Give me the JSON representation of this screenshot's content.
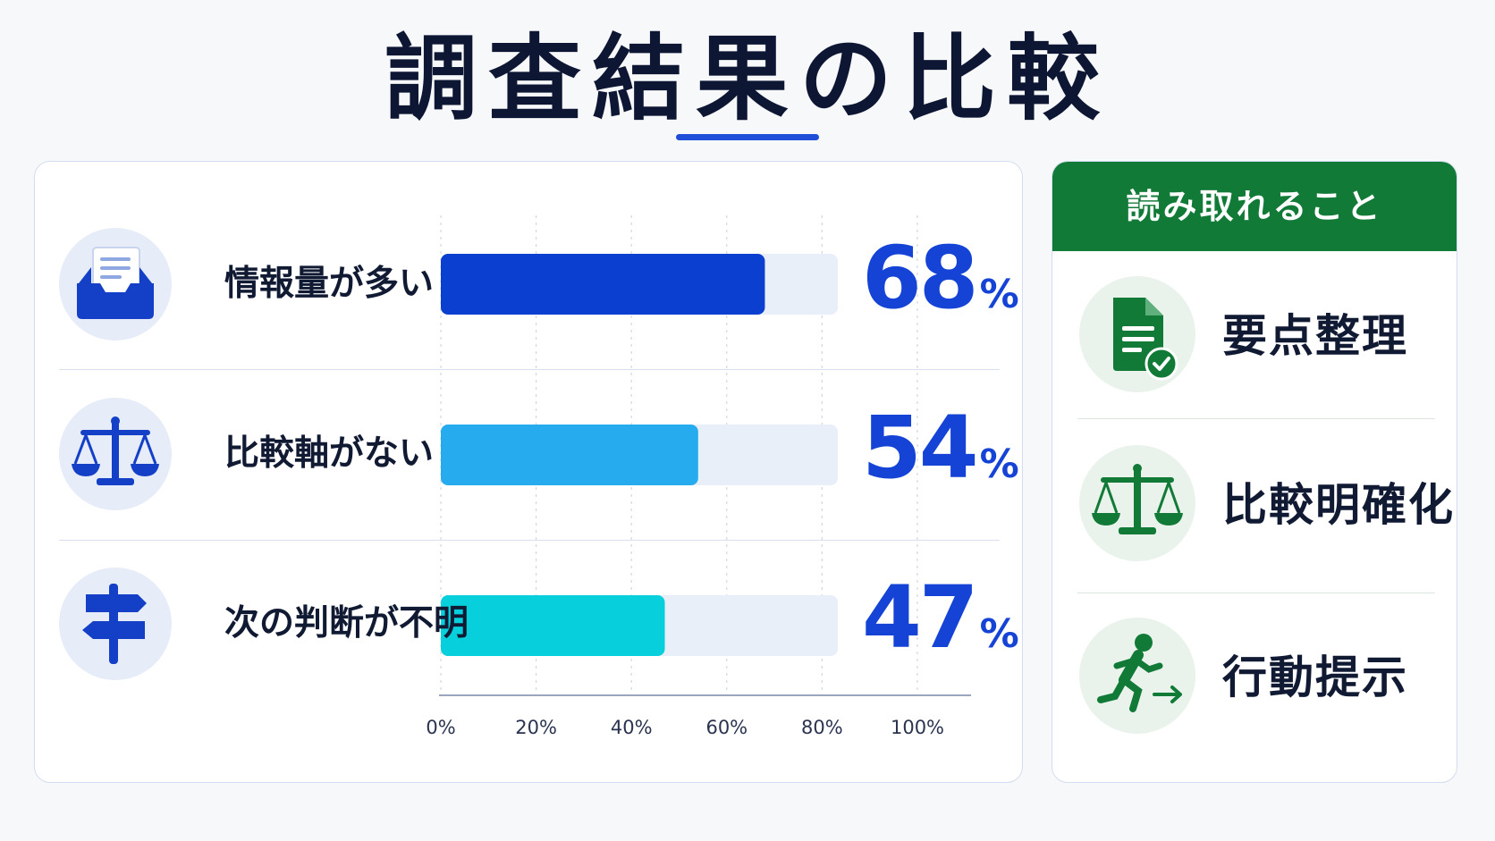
{
  "title": "調査結果の比較",
  "colors": {
    "accent": "#1e4fd6",
    "value_text": "#1443d6",
    "track": "#e9eff9",
    "green": "#127a37"
  },
  "chart_data": {
    "type": "bar",
    "orientation": "horizontal",
    "categories": [
      "情報量が多い",
      "比較軸がない",
      "次の判断が不明"
    ],
    "values": [
      68,
      54,
      47
    ],
    "value_suffix": "%",
    "bar_colors": [
      "#0b3fd0",
      "#26abef",
      "#08cfdc"
    ],
    "category_icons": [
      "inbox-document-icon",
      "balance-scale-icon",
      "signpost-icon"
    ],
    "xlim": [
      0,
      100
    ],
    "x_ticks": [
      "0%",
      "20%",
      "40%",
      "60%",
      "80%",
      "100%"
    ],
    "grid": true,
    "title": "",
    "xlabel": "",
    "ylabel": ""
  },
  "insights": {
    "header": "読み取れること",
    "items": [
      {
        "label": "要点整理",
        "icon": "document-check-icon"
      },
      {
        "label": "比較明確化",
        "icon": "balance-scale-icon"
      },
      {
        "label": "行動提示",
        "icon": "running-person-exit-icon"
      }
    ]
  }
}
